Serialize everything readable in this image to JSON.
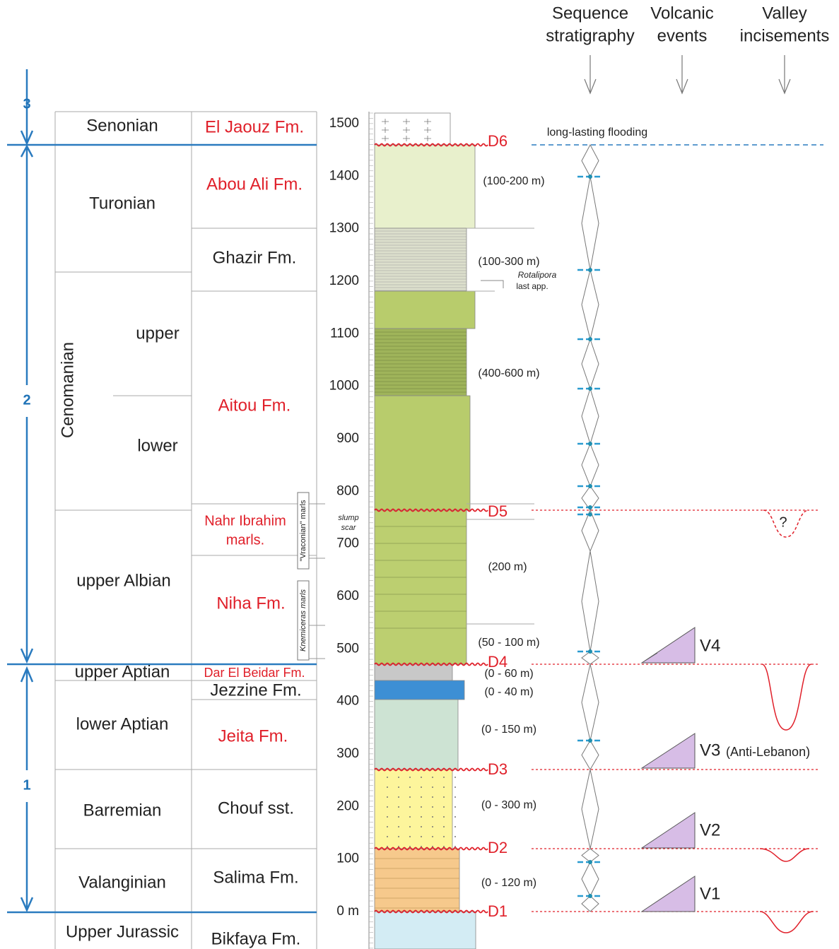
{
  "headers": [
    [
      "Sequence",
      "stratigraphy"
    ],
    [
      "Volcanic",
      "events"
    ],
    [
      "Valley",
      "incisements"
    ]
  ],
  "sequences": [
    "3",
    "2",
    "1"
  ],
  "stages": [
    "Senonian",
    "Turonian",
    "Cenomanian",
    "upper",
    "lower",
    "upper Albian",
    "upper Aptian",
    "lower Aptian",
    "Barremian",
    "Valanginian",
    "Upper Jurassic"
  ],
  "formations": [
    "El Jaouz Fm.",
    "Abou Ali Fm.",
    "Ghazir Fm.",
    "Aitou Fm.",
    "Nahr Ibrahim",
    "marls.",
    "Niha Fm.",
    "Dar El Beidar Fm.",
    "Jezzine Fm.",
    "Jeita Fm.",
    "Chouf sst.",
    "Salima Fm.",
    "Bikfaya Fm."
  ],
  "marls": [
    "\"Vraconian\" marls",
    "Knemiceras marls"
  ],
  "notes": {
    "slump": [
      "slump",
      "scar"
    ],
    "rotalipora": [
      "Rotalipora",
      "last app."
    ],
    "flooding": "long-lasting flooding",
    "question": "?"
  },
  "thicknesses": [
    "(100-200 m)",
    "(100-300 m)",
    "(400-600 m)",
    "(200 m)",
    "(50 - 100 m)",
    "(0 - 60 m)",
    "(0 - 40 m)",
    "(0 - 150 m)",
    "(0 - 300 m)",
    "(0 - 120 m)"
  ],
  "discontinuities": [
    "D6",
    "D5",
    "D4",
    "D3",
    "D2",
    "D1"
  ],
  "volcanic": [
    "V4",
    "V3",
    "V2",
    "V1"
  ],
  "volcanic_note": "(Anti-Lebanon)",
  "depth_scale": [
    "1500",
    "1400",
    "1300",
    "1200",
    "1100",
    "1000",
    "900",
    "800",
    "700",
    "600",
    "500",
    "400",
    "300",
    "200",
    "100",
    "0 m"
  ]
}
